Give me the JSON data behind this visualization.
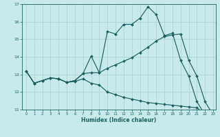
{
  "xlabel": "Humidex (Indice chaleur)",
  "bg_color": "#c8eaea",
  "grid_color": "#a8d0d0",
  "line_color": "#1a6060",
  "xlim_min": -0.5,
  "xlim_max": 23.3,
  "ylim_min": 11,
  "ylim_max": 17,
  "xticks": [
    0,
    1,
    2,
    3,
    4,
    5,
    6,
    7,
    8,
    9,
    10,
    11,
    12,
    13,
    14,
    15,
    16,
    17,
    18,
    19,
    20,
    21,
    22,
    23
  ],
  "yticks": [
    11,
    12,
    13,
    14,
    15,
    16,
    17
  ],
  "line1_x": [
    0,
    1,
    2,
    3,
    4,
    5,
    6,
    7,
    8,
    9,
    10,
    11,
    12,
    13,
    14,
    15,
    16,
    17,
    18,
    19,
    20,
    21,
    22,
    23
  ],
  "line1_y": [
    13.2,
    12.5,
    12.65,
    12.8,
    12.75,
    12.55,
    12.65,
    13.05,
    14.05,
    13.1,
    15.45,
    15.3,
    15.85,
    15.85,
    16.2,
    16.85,
    16.4,
    15.2,
    15.35,
    13.8,
    12.9,
    11.45,
    10.7,
    10.7
  ],
  "line2_x": [
    0,
    1,
    2,
    3,
    4,
    5,
    6,
    7,
    8,
    9,
    10,
    11,
    12,
    13,
    14,
    15,
    16,
    17,
    18,
    19,
    20,
    21,
    22,
    23
  ],
  "line2_y": [
    13.2,
    12.5,
    12.65,
    12.8,
    12.75,
    12.55,
    12.65,
    13.05,
    13.1,
    13.1,
    13.35,
    13.55,
    13.75,
    13.95,
    14.25,
    14.55,
    14.9,
    15.15,
    15.25,
    15.3,
    13.8,
    12.9,
    11.45,
    10.7
  ],
  "line3_x": [
    0,
    1,
    2,
    3,
    4,
    5,
    6,
    7,
    8,
    9,
    10,
    11,
    12,
    13,
    14,
    15,
    16,
    17,
    18,
    19,
    20,
    21,
    22,
    23
  ],
  "line3_y": [
    13.2,
    12.5,
    12.65,
    12.8,
    12.75,
    12.55,
    12.6,
    12.75,
    12.5,
    12.4,
    12.0,
    11.85,
    11.7,
    11.6,
    11.5,
    11.4,
    11.35,
    11.3,
    11.25,
    11.2,
    11.15,
    11.1,
    10.75,
    10.7
  ]
}
